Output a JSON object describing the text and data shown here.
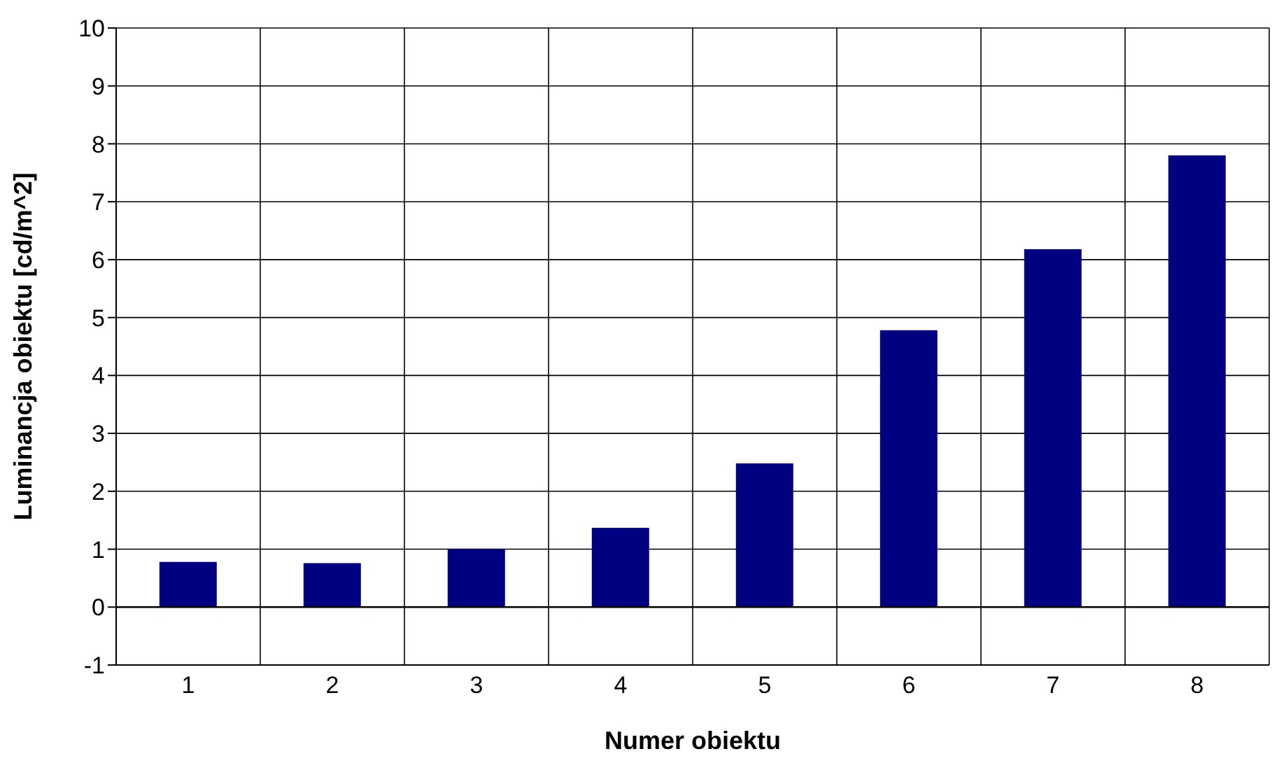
{
  "chart_data": {
    "type": "bar",
    "xlabel": "Numer obiektu",
    "ylabel": "Luminancja obiektu [cd/m^2]",
    "categories": [
      "1",
      "2",
      "3",
      "4",
      "5",
      "6",
      "7",
      "8"
    ],
    "series": [
      {
        "color": "#000080",
        "values": [
          0.78,
          0.76,
          1.0,
          1.37,
          2.48,
          4.78,
          6.18,
          7.8
        ]
      }
    ],
    "ylim": [
      -1,
      10
    ],
    "yticks": [
      -1,
      0,
      1,
      2,
      3,
      4,
      5,
      6,
      7,
      8,
      9,
      10
    ],
    "grid": true,
    "legend": false
  }
}
